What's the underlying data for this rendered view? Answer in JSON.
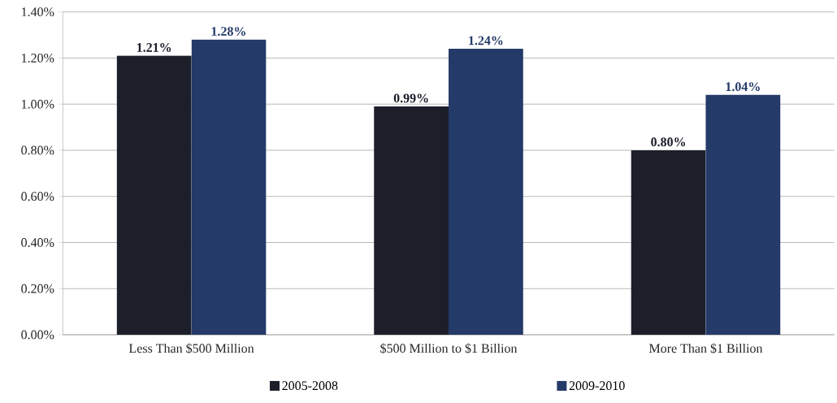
{
  "chart_data": {
    "type": "bar",
    "categories": [
      "Less Than $500 Million",
      "$500 Million to $1 Billion",
      "More Than $1 Billion"
    ],
    "series": [
      {
        "name": "2005-2008",
        "color": "#1c1f2a",
        "values": [
          1.21,
          0.99,
          0.8
        ],
        "value_labels": [
          "1.21%",
          "0.99%",
          "0.80%"
        ]
      },
      {
        "name": "2009-2010",
        "color": "#243a68",
        "values": [
          1.28,
          1.24,
          1.04
        ],
        "value_labels": [
          "1.28%",
          "1.24%",
          "1.04%"
        ]
      }
    ],
    "ylim": [
      0,
      1.4
    ],
    "yticks": [
      {
        "value": 0,
        "label": "0.00%"
      },
      {
        "value": 0.2,
        "label": "0.20%"
      },
      {
        "value": 0.4,
        "label": "0.40%"
      },
      {
        "value": 0.6,
        "label": "0.60%"
      },
      {
        "value": 0.8,
        "label": "0.80%"
      },
      {
        "value": 1.0,
        "label": "1.00%"
      },
      {
        "value": 1.2,
        "label": "1.20%"
      },
      {
        "value": 1.4,
        "label": "1.40%"
      }
    ],
    "grid": "y",
    "legend": "bottom"
  }
}
